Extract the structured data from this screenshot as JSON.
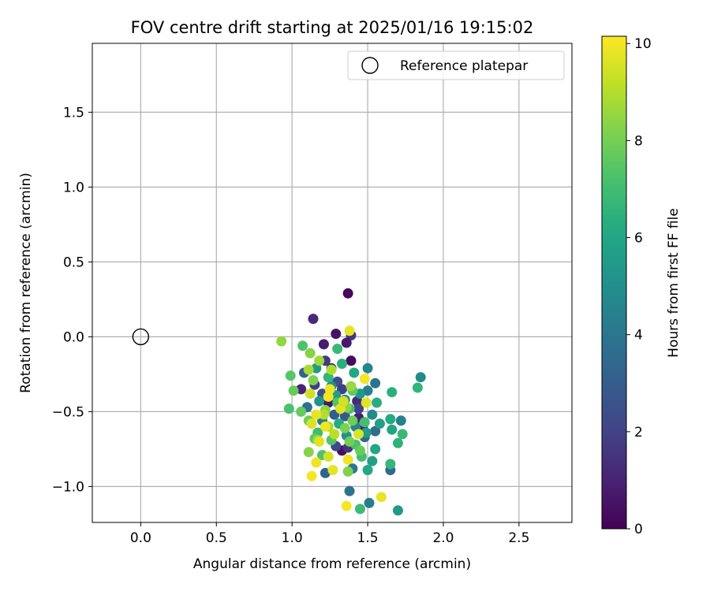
{
  "chart_data": {
    "type": "scatter",
    "title": "FOV centre drift starting at 2025/01/16 19:15:02",
    "xlabel": "Angular distance from reference (arcmin)",
    "ylabel": "Rotation from reference (arcmin)",
    "xlim": [
      -0.32,
      2.85
    ],
    "ylim": [
      -1.24,
      1.96
    ],
    "x_ticks": [
      0.0,
      0.5,
      1.0,
      1.5,
      2.0,
      2.5
    ],
    "x_tick_labels": [
      "0.0",
      "0.5",
      "1.0",
      "1.5",
      "2.0",
      "2.5"
    ],
    "y_ticks": [
      -1.0,
      -0.5,
      0.0,
      0.5,
      1.0,
      1.5
    ],
    "y_tick_labels": [
      "−1.0",
      "−0.5",
      "0.0",
      "0.5",
      "1.0",
      "1.5"
    ],
    "grid": true,
    "legend": {
      "location": "upper right",
      "entries": [
        "Reference platepar"
      ]
    },
    "reference_point": {
      "x": 0.0,
      "y": 0.0,
      "marker": "open-circle",
      "label": "Reference platepar"
    },
    "colorbar": {
      "label": "Hours from first FF file",
      "colormap": "viridis",
      "range": [
        0,
        10.15
      ],
      "ticks": [
        0,
        2,
        4,
        6,
        8,
        10
      ],
      "tick_labels": [
        "0",
        "2",
        "4",
        "6",
        "8",
        "10"
      ]
    },
    "series": [
      {
        "points": [
          {
            "x": 1.37,
            "y": 0.29,
            "t": 0.2
          },
          {
            "x": 1.14,
            "y": 0.12,
            "t": 1.2
          },
          {
            "x": 1.39,
            "y": 0.01,
            "t": 1.6
          },
          {
            "x": 1.29,
            "y": 0.02,
            "t": 0.5
          },
          {
            "x": 1.36,
            "y": -0.04,
            "t": 0.7
          },
          {
            "x": 1.21,
            "y": -0.05,
            "t": 0.8
          },
          {
            "x": 1.39,
            "y": -0.16,
            "t": 0.3
          },
          {
            "x": 1.22,
            "y": -0.16,
            "t": 1.7
          },
          {
            "x": 1.26,
            "y": -0.21,
            "t": 1.4
          },
          {
            "x": 1.08,
            "y": -0.24,
            "t": 3.2
          },
          {
            "x": 1.3,
            "y": -0.3,
            "t": 2.4
          },
          {
            "x": 1.06,
            "y": -0.35,
            "t": 1.0
          },
          {
            "x": 1.33,
            "y": -0.35,
            "t": 1.9
          },
          {
            "x": 1.43,
            "y": -0.43,
            "t": 1.3
          },
          {
            "x": 1.24,
            "y": -0.44,
            "t": 0.6
          },
          {
            "x": 1.35,
            "y": -0.53,
            "t": 2.8
          },
          {
            "x": 1.44,
            "y": -0.54,
            "t": 0.9
          },
          {
            "x": 1.47,
            "y": -0.62,
            "t": 1.1
          },
          {
            "x": 1.33,
            "y": -0.76,
            "t": 0.4
          },
          {
            "x": 1.37,
            "y": -0.74,
            "t": 1.5
          },
          {
            "x": 1.29,
            "y": -0.73,
            "t": 2.2
          },
          {
            "x": 1.44,
            "y": -0.48,
            "t": 2.0
          },
          {
            "x": 1.2,
            "y": -0.38,
            "t": 2.6
          },
          {
            "x": 1.15,
            "y": -0.32,
            "t": 1.8
          },
          {
            "x": 1.5,
            "y": -0.21,
            "t": 4.6
          },
          {
            "x": 1.55,
            "y": -0.31,
            "t": 3.9
          },
          {
            "x": 1.5,
            "y": -0.36,
            "t": 4.3
          },
          {
            "x": 1.85,
            "y": -0.27,
            "t": 4.8
          },
          {
            "x": 1.72,
            "y": -0.56,
            "t": 4.4
          },
          {
            "x": 1.55,
            "y": -0.63,
            "t": 3.6
          },
          {
            "x": 1.48,
            "y": -0.67,
            "t": 3.4
          },
          {
            "x": 1.1,
            "y": -0.47,
            "t": 3.7
          },
          {
            "x": 1.2,
            "y": -0.56,
            "t": 4.1
          },
          {
            "x": 1.38,
            "y": -1.03,
            "t": 3.8
          },
          {
            "x": 1.51,
            "y": -1.11,
            "t": 4.2
          },
          {
            "x": 1.65,
            "y": -0.89,
            "t": 3.5
          },
          {
            "x": 1.4,
            "y": -0.88,
            "t": 4.0
          },
          {
            "x": 1.22,
            "y": -0.91,
            "t": 3.3
          },
          {
            "x": 1.42,
            "y": -0.6,
            "t": 4.5
          },
          {
            "x": 1.53,
            "y": -0.52,
            "t": 4.7
          },
          {
            "x": 1.28,
            "y": -0.52,
            "t": 3.0
          },
          {
            "x": 1.35,
            "y": -0.42,
            "t": 5.0
          },
          {
            "x": 1.45,
            "y": -0.38,
            "t": 5.3
          },
          {
            "x": 1.29,
            "y": -0.39,
            "t": 5.6
          },
          {
            "x": 1.18,
            "y": -0.43,
            "t": 5.2
          },
          {
            "x": 1.66,
            "y": -0.37,
            "t": 6.4
          },
          {
            "x": 1.83,
            "y": -0.34,
            "t": 6.6
          },
          {
            "x": 1.65,
            "y": -0.55,
            "t": 6.2
          },
          {
            "x": 1.73,
            "y": -0.65,
            "t": 6.8
          },
          {
            "x": 1.7,
            "y": -0.71,
            "t": 6.5
          },
          {
            "x": 1.66,
            "y": -0.62,
            "t": 5.9
          },
          {
            "x": 1.56,
            "y": -0.44,
            "t": 6.3
          },
          {
            "x": 1.58,
            "y": -0.58,
            "t": 5.7
          },
          {
            "x": 1.55,
            "y": -0.75,
            "t": 6.0
          },
          {
            "x": 1.53,
            "y": -0.83,
            "t": 5.8
          },
          {
            "x": 1.5,
            "y": -0.89,
            "t": 6.1
          },
          {
            "x": 1.65,
            "y": -0.85,
            "t": 6.7
          },
          {
            "x": 1.7,
            "y": -1.16,
            "t": 5.4
          },
          {
            "x": 1.45,
            "y": -1.15,
            "t": 6.9
          },
          {
            "x": 1.49,
            "y": -0.64,
            "t": 5.5
          },
          {
            "x": 1.36,
            "y": -0.66,
            "t": 5.1
          },
          {
            "x": 1.31,
            "y": -0.58,
            "t": 6.2
          },
          {
            "x": 1.26,
            "y": -0.33,
            "t": 5.0
          },
          {
            "x": 1.33,
            "y": -0.18,
            "t": 6.4
          },
          {
            "x": 1.3,
            "y": -0.08,
            "t": 6.8
          },
          {
            "x": 1.41,
            "y": -0.24,
            "t": 6.1
          },
          {
            "x": 1.16,
            "y": -0.21,
            "t": 5.5
          },
          {
            "x": 1.24,
            "y": -0.27,
            "t": 6.6
          },
          {
            "x": 1.46,
            "y": -0.8,
            "t": 7.0
          },
          {
            "x": 1.42,
            "y": -0.72,
            "t": 7.2
          },
          {
            "x": 1.3,
            "y": -0.44,
            "t": 7.4
          },
          {
            "x": 1.38,
            "y": -0.48,
            "t": 7.1
          },
          {
            "x": 1.4,
            "y": -0.36,
            "t": 7.6
          },
          {
            "x": 1.07,
            "y": -0.06,
            "t": 7.3
          },
          {
            "x": 0.99,
            "y": -0.26,
            "t": 7.5
          },
          {
            "x": 1.01,
            "y": -0.36,
            "t": 7.8
          },
          {
            "x": 0.98,
            "y": -0.48,
            "t": 7.2
          },
          {
            "x": 1.06,
            "y": -0.5,
            "t": 7.7
          },
          {
            "x": 1.11,
            "y": -0.56,
            "t": 7.9
          },
          {
            "x": 1.17,
            "y": -0.64,
            "t": 7.0
          },
          {
            "x": 1.15,
            "y": -0.68,
            "t": 7.6
          },
          {
            "x": 1.26,
            "y": -0.69,
            "t": 7.4
          },
          {
            "x": 1.2,
            "y": -0.79,
            "t": 7.3
          },
          {
            "x": 1.45,
            "y": -0.76,
            "t": 7.8
          },
          {
            "x": 1.48,
            "y": -0.57,
            "t": 7.1
          },
          {
            "x": 1.37,
            "y": -0.9,
            "t": 8.2
          },
          {
            "x": 1.38,
            "y": -0.7,
            "t": 8.0
          },
          {
            "x": 1.11,
            "y": -0.77,
            "t": 8.3
          },
          {
            "x": 1.35,
            "y": -0.61,
            "t": 8.1
          },
          {
            "x": 1.4,
            "y": -0.56,
            "t": 7.9
          },
          {
            "x": 1.36,
            "y": -0.47,
            "t": 8.4
          },
          {
            "x": 1.39,
            "y": -0.33,
            "t": 8.6
          },
          {
            "x": 0.93,
            "y": -0.03,
            "t": 8.5
          },
          {
            "x": 1.12,
            "y": -0.11,
            "t": 8.3
          },
          {
            "x": 1.18,
            "y": -0.16,
            "t": 8.7
          },
          {
            "x": 1.11,
            "y": -0.22,
            "t": 8.8
          },
          {
            "x": 1.14,
            "y": -0.29,
            "t": 8.2
          },
          {
            "x": 1.26,
            "y": -0.22,
            "t": 8.9
          },
          {
            "x": 1.22,
            "y": -0.49,
            "t": 8.4
          },
          {
            "x": 1.24,
            "y": -0.6,
            "t": 8.8
          },
          {
            "x": 1.17,
            "y": -0.69,
            "t": 8.6
          },
          {
            "x": 1.21,
            "y": -0.52,
            "t": 9.0
          },
          {
            "x": 1.28,
            "y": -0.65,
            "t": 9.1
          },
          {
            "x": 1.13,
            "y": -0.58,
            "t": 9.6
          },
          {
            "x": 1.16,
            "y": -0.52,
            "t": 9.8
          },
          {
            "x": 1.22,
            "y": -0.6,
            "t": 9.9
          },
          {
            "x": 1.24,
            "y": -0.4,
            "t": 10.0
          },
          {
            "x": 1.32,
            "y": -0.48,
            "t": 9.7
          },
          {
            "x": 1.34,
            "y": -0.43,
            "t": 9.5
          },
          {
            "x": 1.25,
            "y": -0.35,
            "t": 9.9
          },
          {
            "x": 1.12,
            "y": -0.38,
            "t": 9.4
          },
          {
            "x": 1.38,
            "y": 0.04,
            "t": 9.8
          },
          {
            "x": 1.48,
            "y": -0.28,
            "t": 10.0
          },
          {
            "x": 1.49,
            "y": -0.44,
            "t": 9.7
          },
          {
            "x": 1.44,
            "y": -0.65,
            "t": 9.6
          },
          {
            "x": 1.37,
            "y": -0.82,
            "t": 9.9
          },
          {
            "x": 1.27,
            "y": -0.89,
            "t": 9.8
          },
          {
            "x": 1.13,
            "y": -0.93,
            "t": 10.0
          },
          {
            "x": 1.16,
            "y": -0.84,
            "t": 9.9
          },
          {
            "x": 1.24,
            "y": -0.8,
            "t": 9.5
          },
          {
            "x": 1.36,
            "y": -1.13,
            "t": 10.0
          },
          {
            "x": 1.59,
            "y": -1.07,
            "t": 9.8
          },
          {
            "x": 1.18,
            "y": -0.7,
            "t": 9.7
          }
        ]
      }
    ]
  }
}
